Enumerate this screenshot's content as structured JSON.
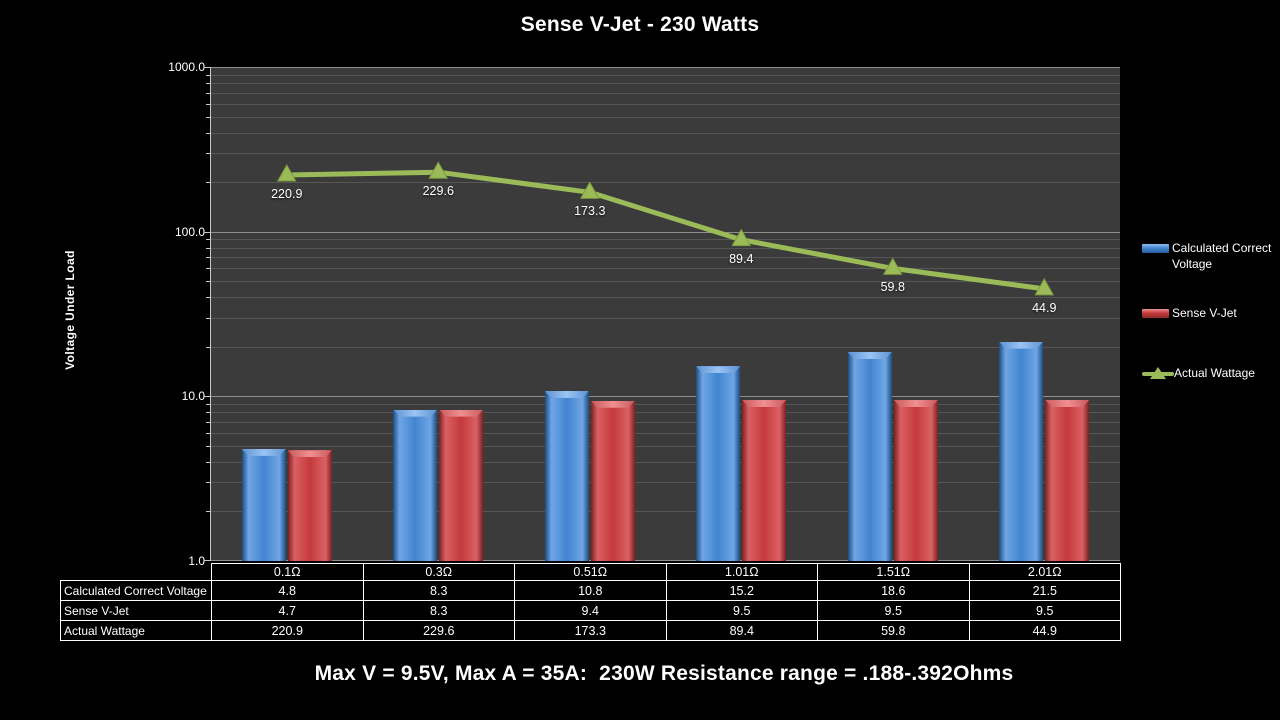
{
  "slide": {
    "title": "Sense V-Jet - 230 Watts",
    "caption": "Max V = 9.5V, Max A = 35A:  230W Resistance range = .188-.392Ohms"
  },
  "colors": {
    "background": "#000000",
    "plot_background": "#3B3B3B",
    "minor_gridline": "#565656",
    "major_gridline": "#8E8E8E",
    "axis": "#C9C9C9",
    "text": "#FFFFFF",
    "series_blue": "#4285D0",
    "series_red": "#C43A3C",
    "series_green": "#9BBB59"
  },
  "chart_data": {
    "type": "combo-bar-line",
    "title": "Sense V-Jet - 230 Watts",
    "categories": [
      "0.1Ω",
      "0.3Ω",
      "0.51Ω",
      "1.01Ω",
      "1.51Ω",
      "2.01Ω"
    ],
    "series": [
      {
        "name": "Calculated Correct Voltage",
        "type": "bar",
        "color": "#4285D0",
        "values": [
          4.8,
          8.3,
          10.8,
          15.2,
          18.6,
          21.5
        ]
      },
      {
        "name": "Sense V-Jet",
        "type": "bar",
        "color": "#C43A3C",
        "values": [
          4.7,
          8.3,
          9.4,
          9.5,
          9.5,
          9.5
        ]
      },
      {
        "name": "Actual Wattage",
        "type": "line",
        "color": "#9BBB59",
        "values": [
          220.9,
          229.6,
          173.3,
          89.4,
          59.8,
          44.9
        ]
      }
    ],
    "xlabel": "",
    "ylabel": "Voltage Under Load",
    "y_scale": "log",
    "ylim": [
      1.0,
      1000.0
    ],
    "y_ticks": [
      "1000.0",
      "100.0",
      "10.0",
      "1.0"
    ],
    "grid": true,
    "legend_position": "right",
    "data_table_shown": true
  }
}
